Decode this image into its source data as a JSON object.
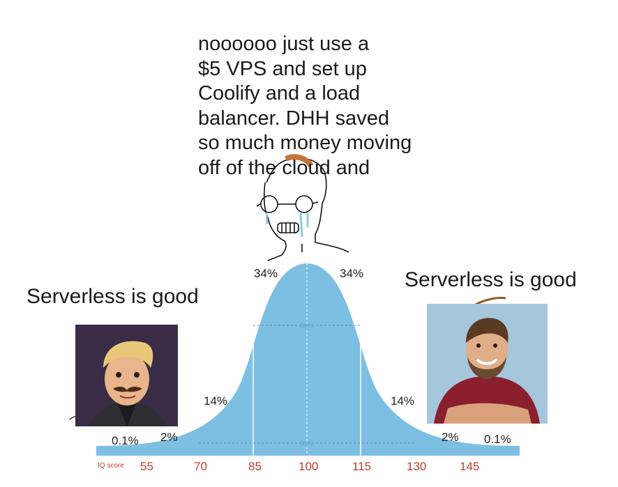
{
  "meme": {
    "center_text": "noooooo just use a\n$5 VPS and set up\nCoolify and a load\nbalancer. DHH saved\nso much money moving\noff of the cloud and",
    "left_caption": "Serverless is good",
    "right_caption": "Serverless is good"
  },
  "bell_curve": {
    "axis_label": "IQ score",
    "ticks": [
      "55",
      "70",
      "85",
      "100",
      "115",
      "130",
      "145"
    ],
    "percent_labels": {
      "left_tail": "0.1%",
      "left_2": "2%",
      "left_14": "14%",
      "left_34": "34%",
      "right_34": "34%",
      "right_14": "14%",
      "right_2": "2%",
      "right_tail": "0.1%"
    },
    "inner_labels": {
      "mid_68": "68%",
      "mid_95": "95%"
    },
    "colors": {
      "curve_fill": "#7dbfe3",
      "tick_text": "#c0392b"
    }
  }
}
